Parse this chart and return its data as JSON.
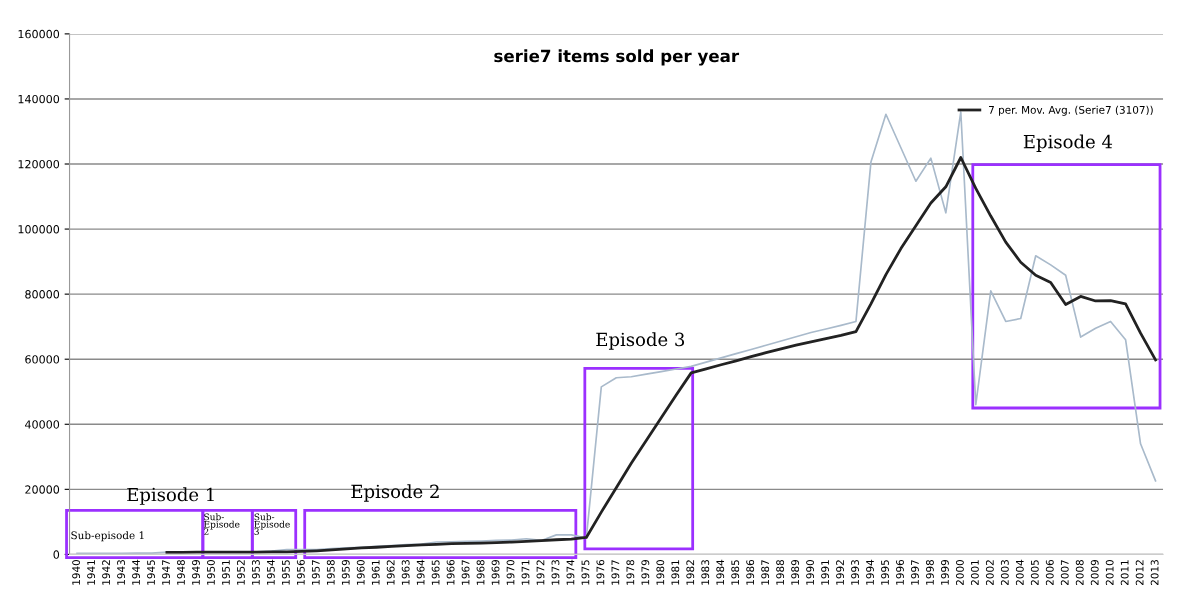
{
  "chart_data": {
    "type": "line",
    "title": "serie7 items sold per year",
    "categories": [
      "1940",
      "1941",
      "1942",
      "1943",
      "1944",
      "1945",
      "1947",
      "1948",
      "1949",
      "1950",
      "1951",
      "1952",
      "1953",
      "1954",
      "1955",
      "1956",
      "1957",
      "1958",
      "1959",
      "1960",
      "1961",
      "1962",
      "1963",
      "1964",
      "1965",
      "1966",
      "1967",
      "1968",
      "1969",
      "1970",
      "1971",
      "1972",
      "1973",
      "1974",
      "1975",
      "1976",
      "1977",
      "1978",
      "1979",
      "1980",
      "1981",
      "1982",
      "1983",
      "1984",
      "1985",
      "1986",
      "1987",
      "1988",
      "1989",
      "1990",
      "1991",
      "1992",
      "1993",
      "1994",
      "1995",
      "1996",
      "1997",
      "1998",
      "1999",
      "2000",
      "2001",
      "2002",
      "2003",
      "2004",
      "2005",
      "2006",
      "2007",
      "2008",
      "2009",
      "2010",
      "2011",
      "2012",
      "2013"
    ],
    "series": [
      {
        "color": "#a9bacb",
        "values": [
          300,
          300,
          300,
          300,
          400,
          400,
          700,
          700,
          800,
          800,
          700,
          700,
          800,
          1000,
          1500,
          1500,
          1500,
          1800,
          2000,
          2200,
          2500,
          2700,
          3000,
          3200,
          3800,
          3900,
          4000,
          4100,
          4300,
          4400,
          4800,
          4300,
          6000,
          6000,
          5000,
          51500,
          54300,
          54600,
          55400,
          56200,
          57000,
          57800,
          59100,
          60400,
          61700,
          63000,
          64300,
          65600,
          66900,
          68200,
          69300,
          70400,
          71600,
          120600,
          135300,
          125000,
          114700,
          121800,
          105000,
          136000,
          46000,
          81000,
          71600,
          72500,
          91800,
          89000,
          85800,
          66800,
          69500,
          71600,
          66000,
          34000,
          22600
        ]
      },
      {
        "name": "7 per. Mov. Avg. (Serie7 (3107))",
        "color": "#222222",
        "values": [
          null,
          null,
          null,
          null,
          null,
          null,
          600,
          600,
          700,
          700,
          700,
          700,
          700,
          800,
          800,
          900,
          1100,
          1400,
          1700,
          2000,
          2200,
          2500,
          2700,
          2900,
          3100,
          3300,
          3400,
          3500,
          3600,
          3800,
          4000,
          4200,
          4500,
          4700,
          5200,
          13000,
          20500,
          28000,
          35000,
          42000,
          49000,
          55800,
          57000,
          58300,
          59500,
          60800,
          62000,
          63200,
          64300,
          65300,
          66300,
          67300,
          68500,
          77000,
          86000,
          94000,
          101000,
          108000,
          113000,
          122000,
          112500,
          104000,
          96000,
          89800,
          85800,
          83600,
          76800,
          79300,
          77900,
          78000,
          77000,
          68000,
          59800
        ]
      }
    ],
    "ylim": [
      0,
      160000
    ],
    "yticks": [
      0,
      20000,
      40000,
      60000,
      80000,
      100000,
      120000,
      140000,
      160000
    ],
    "grid": "y",
    "legend": "top right",
    "marker": "none",
    "line_style": "solid",
    "annotations": [
      "Episode 1",
      "Episode 2",
      "Episode 3",
      "Episode 4",
      "Sub-episode 1",
      "Sub-\nEpisode\n2",
      "Sub-\nEpisode\n3"
    ]
  }
}
